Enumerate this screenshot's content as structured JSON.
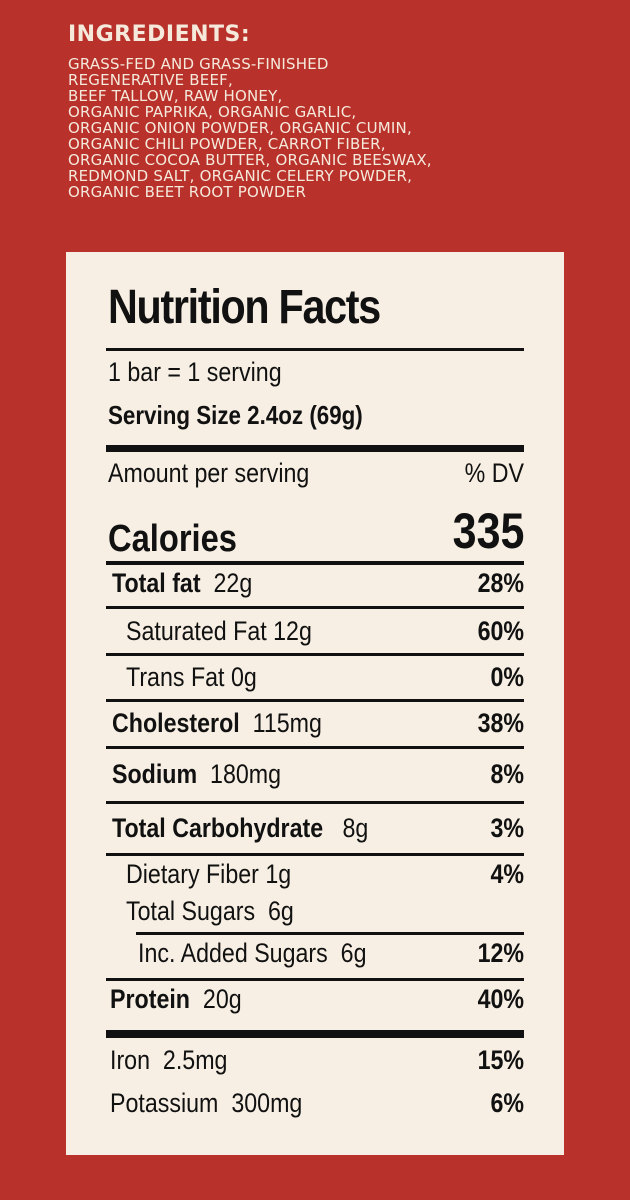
{
  "ingredients": {
    "title": "INGREDIENTS:",
    "lines": [
      "GRASS-FED AND GRASS-FINISHED",
      "REGENERATIVE BEEF,",
      "BEEF TALLOW, RAW HONEY,",
      "ORGANIC  PAPRIKA, ORGANIC GARLIC,",
      "ORGANIC ONION POWDER, ORGANIC CUMIN,",
      "ORGANIC CHILI POWDER, CARROT FIBER,",
      "ORGANIC COCOA BUTTER, ORGANIC BEESWAX,",
      "REDMOND SALT, ORGANIC CELERY POWDER,",
      "ORGANIC  BEET ROOT POWDER"
    ]
  },
  "nutrition": {
    "title": "Nutrition Facts",
    "servings": "1 bar = 1 serving",
    "serving_size": "Serving Size 2.4oz (69g)",
    "amount_per_serving": "Amount per serving",
    "dv_header": "% DV",
    "calories_label": "Calories",
    "calories_value": "335",
    "rows": {
      "total_fat": {
        "label": "Total fat",
        "amount": "22g",
        "dv": "28%"
      },
      "saturated_fat": {
        "label": "Saturated Fat 12g",
        "dv": "60%"
      },
      "trans_fat": {
        "label": "Trans Fat 0g",
        "dv": "0%"
      },
      "cholesterol": {
        "label": "Cholesterol",
        "amount": "115mg",
        "dv": "38%"
      },
      "sodium": {
        "label": "Sodium",
        "amount": "180mg",
        "dv": "8%"
      },
      "total_carbohydrate": {
        "label": "Total Carbohydrate",
        "amount": "8g",
        "dv": "3%"
      },
      "dietary_fiber": {
        "label": "Dietary Fiber 1g",
        "dv": "4%"
      },
      "total_sugars": {
        "label": "Total Sugars",
        "amount": "6g"
      },
      "added_sugars": {
        "label": "Inc. Added Sugars",
        "amount": "6g",
        "dv": "12%"
      },
      "protein": {
        "label": "Protein",
        "amount": "20g",
        "dv": "40%"
      },
      "iron": {
        "label": "Iron",
        "amount": "2.5mg",
        "dv": "15%"
      },
      "potassium": {
        "label": "Potassium",
        "amount": "300mg",
        "dv": "6%"
      }
    }
  },
  "colors": {
    "background": "#b8312a",
    "panel": "#f7efe3",
    "ingredient_text": "#f5e9dc",
    "ink": "#111111"
  }
}
